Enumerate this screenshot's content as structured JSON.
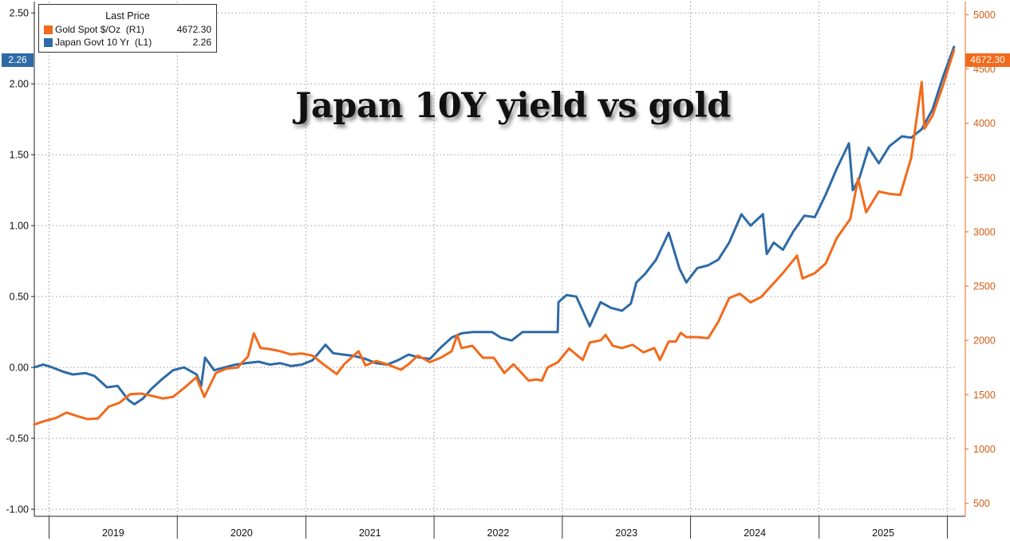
{
  "chart_data": {
    "type": "line",
    "title": "Japan 10Y yield vs gold",
    "legend": {
      "header": "Last Price",
      "placement": "top-left",
      "entries": [
        {
          "name": "Gold Spot $/Oz",
          "axis": "(R1)",
          "last": "4672.30",
          "color": "#f26a1b"
        },
        {
          "name": "Japan Govt 10 Yr",
          "axis": "(L1)",
          "last": "2.26",
          "color": "#2e6aa6"
        }
      ]
    },
    "left_axis": {
      "ticks": [
        "2.50",
        "2.00",
        "1.50",
        "1.00",
        "0.50",
        "0.00",
        "-0.50",
        "-1.00"
      ],
      "range": [
        -1.05,
        2.58
      ]
    },
    "right_axis": {
      "ticks": [
        "5000",
        "4500",
        "4000",
        "3500",
        "3000",
        "2500",
        "2000",
        "1500",
        "1000",
        "500"
      ],
      "range": [
        380,
        5120
      ]
    },
    "x_axis": {
      "labels": [
        "2019",
        "2020",
        "2021",
        "2022",
        "2023",
        "2024",
        "2025"
      ],
      "range": [
        "2018-11-20",
        "2026-01-25"
      ]
    },
    "grid": true,
    "last_value_tags": {
      "left": "2.26",
      "right": "4672.30"
    },
    "series": [
      {
        "name": "Japan Govt 10 Yr",
        "axis": "left",
        "color": "#2e6aa6",
        "points": [
          [
            "2018-11-20",
            0.0
          ],
          [
            "2018-12-15",
            0.02
          ],
          [
            "2019-01-10",
            0.0
          ],
          [
            "2019-02-10",
            -0.03
          ],
          [
            "2019-03-10",
            -0.05
          ],
          [
            "2019-04-15",
            -0.04
          ],
          [
            "2019-05-10",
            -0.06
          ],
          [
            "2019-06-15",
            -0.14
          ],
          [
            "2019-07-15",
            -0.13
          ],
          [
            "2019-08-15",
            -0.23
          ],
          [
            "2019-09-01",
            -0.26
          ],
          [
            "2019-09-25",
            -0.22
          ],
          [
            "2019-10-20",
            -0.15
          ],
          [
            "2019-11-20",
            -0.08
          ],
          [
            "2019-12-20",
            -0.02
          ],
          [
            "2020-01-20",
            0.0
          ],
          [
            "2020-02-25",
            -0.05
          ],
          [
            "2020-03-09",
            -0.13
          ],
          [
            "2020-03-20",
            0.07
          ],
          [
            "2020-04-15",
            -0.02
          ],
          [
            "2020-05-15",
            0.0
          ],
          [
            "2020-06-15",
            0.02
          ],
          [
            "2020-07-15",
            0.03
          ],
          [
            "2020-08-20",
            0.04
          ],
          [
            "2020-09-20",
            0.02
          ],
          [
            "2020-10-20",
            0.03
          ],
          [
            "2020-11-20",
            0.01
          ],
          [
            "2020-12-20",
            0.02
          ],
          [
            "2021-01-20",
            0.05
          ],
          [
            "2021-02-26",
            0.16
          ],
          [
            "2021-03-20",
            0.1
          ],
          [
            "2021-04-20",
            0.09
          ],
          [
            "2021-05-20",
            0.08
          ],
          [
            "2021-06-20",
            0.06
          ],
          [
            "2021-07-20",
            0.03
          ],
          [
            "2021-08-20",
            0.02
          ],
          [
            "2021-09-20",
            0.05
          ],
          [
            "2021-10-20",
            0.09
          ],
          [
            "2021-11-20",
            0.07
          ],
          [
            "2021-12-20",
            0.06
          ],
          [
            "2022-01-20",
            0.14
          ],
          [
            "2022-02-20",
            0.21
          ],
          [
            "2022-03-20",
            0.24
          ],
          [
            "2022-04-20",
            0.25
          ],
          [
            "2022-05-20",
            0.25
          ],
          [
            "2022-06-15",
            0.25
          ],
          [
            "2022-07-10",
            0.21
          ],
          [
            "2022-08-10",
            0.19
          ],
          [
            "2022-09-10",
            0.25
          ],
          [
            "2022-10-20",
            0.25
          ],
          [
            "2022-11-20",
            0.25
          ],
          [
            "2022-12-19",
            0.25
          ],
          [
            "2022-12-21",
            0.46
          ],
          [
            "2023-01-13",
            0.51
          ],
          [
            "2023-02-10",
            0.5
          ],
          [
            "2023-03-20",
            0.29
          ],
          [
            "2023-04-20",
            0.46
          ],
          [
            "2023-05-20",
            0.42
          ],
          [
            "2023-06-20",
            0.4
          ],
          [
            "2023-07-15",
            0.45
          ],
          [
            "2023-07-31",
            0.6
          ],
          [
            "2023-08-25",
            0.66
          ],
          [
            "2023-09-25",
            0.76
          ],
          [
            "2023-10-31",
            0.95
          ],
          [
            "2023-11-30",
            0.7
          ],
          [
            "2023-12-20",
            0.6
          ],
          [
            "2024-01-20",
            0.7
          ],
          [
            "2024-02-20",
            0.72
          ],
          [
            "2024-03-20",
            0.76
          ],
          [
            "2024-04-20",
            0.88
          ],
          [
            "2024-05-25",
            1.08
          ],
          [
            "2024-06-20",
            1.0
          ],
          [
            "2024-07-25",
            1.08
          ],
          [
            "2024-08-05",
            0.8
          ],
          [
            "2024-08-25",
            0.88
          ],
          [
            "2024-09-20",
            0.83
          ],
          [
            "2024-10-20",
            0.96
          ],
          [
            "2024-11-20",
            1.07
          ],
          [
            "2024-12-20",
            1.06
          ],
          [
            "2025-01-20",
            1.22
          ],
          [
            "2025-02-20",
            1.4
          ],
          [
            "2025-03-27",
            1.58
          ],
          [
            "2025-04-07",
            1.25
          ],
          [
            "2025-04-25",
            1.33
          ],
          [
            "2025-05-22",
            1.55
          ],
          [
            "2025-06-20",
            1.44
          ],
          [
            "2025-07-20",
            1.56
          ],
          [
            "2025-08-25",
            1.63
          ],
          [
            "2025-09-20",
            1.62
          ],
          [
            "2025-10-20",
            1.68
          ],
          [
            "2025-11-20",
            1.82
          ],
          [
            "2025-12-20",
            2.05
          ],
          [
            "2026-01-20",
            2.26
          ]
        ]
      },
      {
        "name": "Gold Spot $/Oz",
        "axis": "right",
        "color": "#f26a1b",
        "points": [
          [
            "2018-11-20",
            1225
          ],
          [
            "2018-12-20",
            1258
          ],
          [
            "2019-01-20",
            1285
          ],
          [
            "2019-02-20",
            1335
          ],
          [
            "2019-03-20",
            1305
          ],
          [
            "2019-04-20",
            1275
          ],
          [
            "2019-05-20",
            1280
          ],
          [
            "2019-06-20",
            1390
          ],
          [
            "2019-07-20",
            1425
          ],
          [
            "2019-08-20",
            1505
          ],
          [
            "2019-09-20",
            1510
          ],
          [
            "2019-10-20",
            1490
          ],
          [
            "2019-11-20",
            1465
          ],
          [
            "2019-12-20",
            1480
          ],
          [
            "2020-01-20",
            1560
          ],
          [
            "2020-02-24",
            1660
          ],
          [
            "2020-03-18",
            1480
          ],
          [
            "2020-04-20",
            1700
          ],
          [
            "2020-05-20",
            1740
          ],
          [
            "2020-06-20",
            1750
          ],
          [
            "2020-07-20",
            1850
          ],
          [
            "2020-08-06",
            2065
          ],
          [
            "2020-08-25",
            1930
          ],
          [
            "2020-09-20",
            1920
          ],
          [
            "2020-10-20",
            1900
          ],
          [
            "2020-11-20",
            1870
          ],
          [
            "2020-12-20",
            1880
          ],
          [
            "2021-01-20",
            1860
          ],
          [
            "2021-02-20",
            1780
          ],
          [
            "2021-03-30",
            1690
          ],
          [
            "2021-04-20",
            1780
          ],
          [
            "2021-05-31",
            1900
          ],
          [
            "2021-06-20",
            1770
          ],
          [
            "2021-07-20",
            1810
          ],
          [
            "2021-08-20",
            1780
          ],
          [
            "2021-09-29",
            1730
          ],
          [
            "2021-10-20",
            1780
          ],
          [
            "2021-11-16",
            1860
          ],
          [
            "2021-12-20",
            1800
          ],
          [
            "2022-01-20",
            1840
          ],
          [
            "2022-02-20",
            1900
          ],
          [
            "2022-03-08",
            2050
          ],
          [
            "2022-03-20",
            1930
          ],
          [
            "2022-04-20",
            1950
          ],
          [
            "2022-05-20",
            1840
          ],
          [
            "2022-06-20",
            1840
          ],
          [
            "2022-07-20",
            1700
          ],
          [
            "2022-08-15",
            1780
          ],
          [
            "2022-09-27",
            1630
          ],
          [
            "2022-10-20",
            1640
          ],
          [
            "2022-11-04",
            1630
          ],
          [
            "2022-11-20",
            1750
          ],
          [
            "2022-12-20",
            1800
          ],
          [
            "2023-01-20",
            1925
          ],
          [
            "2023-02-28",
            1820
          ],
          [
            "2023-03-20",
            1980
          ],
          [
            "2023-04-20",
            2000
          ],
          [
            "2023-05-04",
            2050
          ],
          [
            "2023-05-25",
            1950
          ],
          [
            "2023-06-20",
            1930
          ],
          [
            "2023-07-20",
            1960
          ],
          [
            "2023-08-20",
            1890
          ],
          [
            "2023-09-20",
            1930
          ],
          [
            "2023-10-06",
            1820
          ],
          [
            "2023-10-31",
            1990
          ],
          [
            "2023-11-20",
            1990
          ],
          [
            "2023-12-04",
            2070
          ],
          [
            "2023-12-20",
            2030
          ],
          [
            "2024-01-20",
            2030
          ],
          [
            "2024-02-20",
            2020
          ],
          [
            "2024-03-20",
            2170
          ],
          [
            "2024-04-20",
            2390
          ],
          [
            "2024-05-20",
            2430
          ],
          [
            "2024-06-20",
            2350
          ],
          [
            "2024-07-20",
            2400
          ],
          [
            "2024-08-20",
            2510
          ],
          [
            "2024-09-20",
            2620
          ],
          [
            "2024-10-30",
            2780
          ],
          [
            "2024-11-15",
            2570
          ],
          [
            "2024-12-20",
            2620
          ],
          [
            "2025-01-20",
            2710
          ],
          [
            "2025-02-20",
            2940
          ],
          [
            "2025-03-31",
            3120
          ],
          [
            "2025-04-22",
            3490
          ],
          [
            "2025-05-15",
            3180
          ],
          [
            "2025-06-20",
            3370
          ],
          [
            "2025-07-20",
            3350
          ],
          [
            "2025-08-20",
            3340
          ],
          [
            "2025-09-20",
            3680
          ],
          [
            "2025-10-20",
            4380
          ],
          [
            "2025-10-28",
            3950
          ],
          [
            "2025-11-20",
            4070
          ],
          [
            "2025-12-20",
            4350
          ],
          [
            "2026-01-20",
            4672.3
          ]
        ]
      }
    ]
  }
}
